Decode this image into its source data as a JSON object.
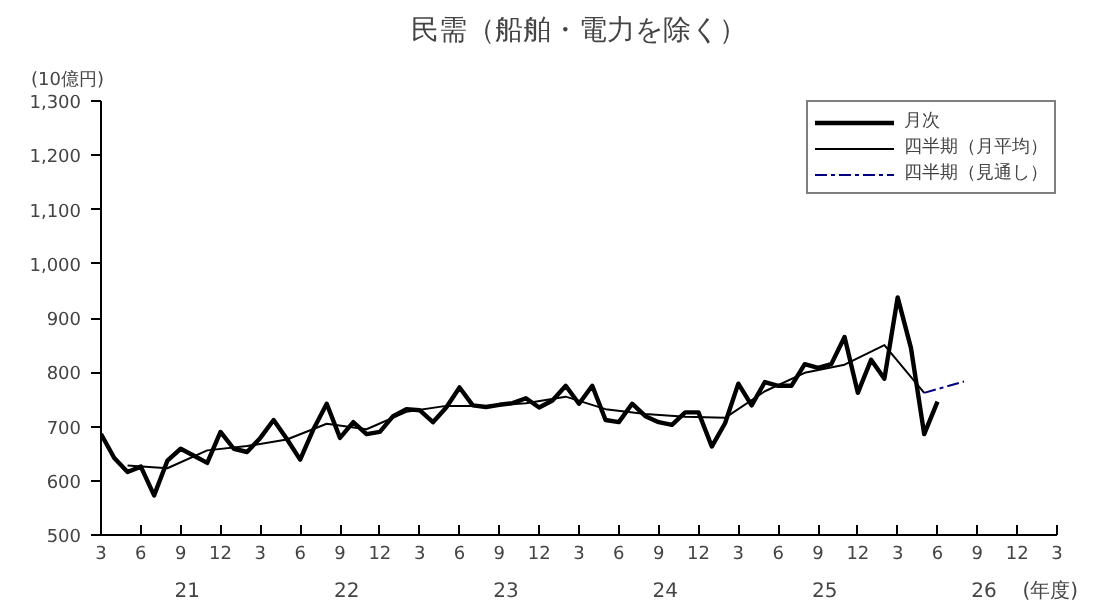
{
  "chart_data": {
    "type": "line",
    "title": "民需（船舶・電力を除く）",
    "ylabel": "(10億円)",
    "xlabel": "(年度)",
    "categories": [
      "3",
      null,
      null,
      "6",
      null,
      null,
      "9",
      null,
      null,
      "12",
      null,
      null,
      "3",
      null,
      null,
      "6",
      null,
      null,
      "9",
      null,
      null,
      "12",
      null,
      null,
      "3",
      null,
      null,
      "6",
      null,
      null,
      "9",
      null,
      null,
      "12",
      null,
      null,
      "3",
      null,
      null,
      "6",
      null,
      null,
      "9",
      null,
      null,
      "12",
      null,
      null,
      "3",
      null,
      null,
      "6",
      null,
      null,
      "9",
      null,
      null,
      "12",
      null,
      null,
      "3",
      null,
      null,
      "6",
      null,
      null,
      "9",
      null,
      null,
      "12",
      null,
      null,
      "3"
    ],
    "annotations": [
      "21",
      "22",
      "23",
      "24",
      "25",
      "26"
    ],
    "ylim": [
      500,
      1300
    ],
    "yticks": [
      {
        "value": 500,
        "label": "500"
      },
      {
        "value": 600,
        "label": "600"
      },
      {
        "value": 700,
        "label": "700"
      },
      {
        "value": 800,
        "label": "800"
      },
      {
        "value": 900,
        "label": "900"
      },
      {
        "value": 1000,
        "label": "1,000"
      },
      {
        "value": 1100,
        "label": "1,100"
      },
      {
        "value": 1200,
        "label": "1,200"
      },
      {
        "value": 1300,
        "label": "1,300"
      }
    ],
    "grid": false,
    "legend": "top right",
    "marker": "none",
    "series": [
      {
        "name": "月次",
        "color": "#000000",
        "line_style": "solid",
        "values": [
          686,
          642,
          616,
          626,
          573,
          637,
          659,
          646,
          633,
          690,
          659,
          653,
          679,
          712,
          677,
          639,
          695,
          742,
          679,
          708,
          686,
          690,
          719,
          732,
          730,
          708,
          735,
          772,
          739,
          736,
          740,
          743,
          752,
          735,
          748,
          775,
          742,
          775,
          712,
          708,
          742,
          719,
          708,
          703,
          726,
          726,
          663,
          706,
          779,
          739,
          782,
          775,
          775,
          815,
          808,
          815,
          865,
          762,
          823,
          788,
          938,
          845,
          686,
          746,
          null,
          null,
          null,
          null,
          null,
          null,
          null,
          null,
          null
        ]
      },
      {
        "name": "四半期（月平均）",
        "color": "#000000",
        "line_style": "solid",
        "values": [
          null,
          null,
          628,
          null,
          null,
          623,
          null,
          null,
          656,
          null,
          null,
          664,
          null,
          null,
          676,
          null,
          null,
          705,
          null,
          null,
          695,
          null,
          null,
          727,
          null,
          null,
          738,
          null,
          null,
          738,
          null,
          null,
          743,
          null,
          null,
          755,
          null,
          null,
          732,
          null,
          null,
          723,
          null,
          null,
          718,
          null,
          null,
          716,
          null,
          null,
          765,
          null,
          null,
          799,
          null,
          null,
          814,
          null,
          null,
          850,
          null,
          null,
          762,
          null,
          null,
          null,
          null,
          null,
          null,
          null,
          null,
          null,
          null
        ]
      },
      {
        "name": "四半期（見通し）",
        "color": "#000080",
        "line_style": "dashed",
        "values": [
          null,
          null,
          null,
          null,
          null,
          null,
          null,
          null,
          null,
          null,
          null,
          null,
          null,
          null,
          null,
          null,
          null,
          null,
          null,
          null,
          null,
          null,
          null,
          null,
          null,
          null,
          null,
          null,
          null,
          null,
          null,
          null,
          null,
          null,
          null,
          null,
          null,
          null,
          null,
          null,
          null,
          null,
          null,
          null,
          null,
          null,
          null,
          null,
          null,
          null,
          null,
          null,
          null,
          null,
          null,
          null,
          null,
          null,
          null,
          null,
          null,
          null,
          762,
          null,
          null,
          783,
          null,
          null,
          null,
          null,
          null,
          null,
          null
        ]
      }
    ]
  }
}
